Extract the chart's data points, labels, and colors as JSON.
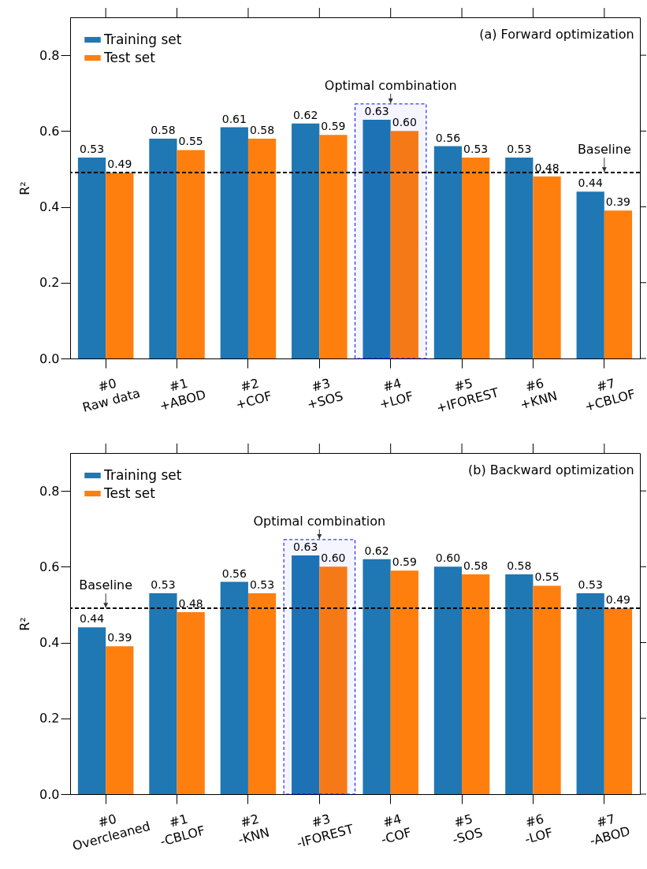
{
  "chart_data": [
    {
      "type": "bar",
      "title": "(a) Forward optimization",
      "ylabel": "R²",
      "categories": [
        "#0\nRaw data",
        "#1\n+ABOD",
        "#2\n+COF",
        "#3\n+SOS",
        "#4\n+LOF",
        "#5\n+IFOREST",
        "#6\n+KNN",
        "#7\n+CBLOF"
      ],
      "series": [
        {
          "name": "Training set",
          "color": "#1f77b4",
          "values": [
            0.53,
            0.58,
            0.61,
            0.62,
            0.63,
            0.56,
            0.53,
            0.44
          ],
          "value_labels": [
            "0.53",
            "0.58",
            "0.61",
            "0.62",
            "0.63",
            "0.56",
            "0.53",
            "0.44"
          ]
        },
        {
          "name": "Test set",
          "color": "#ff7f0e",
          "values": [
            0.49,
            0.55,
            0.58,
            0.59,
            0.6,
            0.53,
            0.48,
            0.39
          ],
          "value_labels": [
            "0.49",
            "0.55",
            "0.58",
            "0.59",
            "0.60",
            "0.53",
            "0.48",
            "0.39"
          ]
        }
      ],
      "ylim": [
        0,
        0.9
      ],
      "yticks": [
        {
          "value": 0,
          "label": "0.0"
        },
        0.2,
        0.4,
        0.6,
        0.8
      ],
      "legend": "top left",
      "ref_lines": [
        {
          "axis": "y",
          "value": 0.49,
          "color": "#000000",
          "line_style": "dashed"
        }
      ],
      "bands": [
        {
          "axis": "x",
          "from": "#4\n+LOF",
          "to": "#4\n+LOF",
          "label": "Optimal combination",
          "color": "#0000ff"
        }
      ],
      "annotations": [
        {
          "text": "Baseline",
          "x": "#7\n+CBLOF",
          "y": 0.49
        }
      ]
    },
    {
      "type": "bar",
      "title": "(b) Backward optimization",
      "ylabel": "R²",
      "categories": [
        "#0\nOvercleaned",
        "#1\n-CBLOF",
        "#2\n-KNN",
        "#3\n-IFOREST",
        "#4\n-COF",
        "#5\n-SOS",
        "#6\n-LOF",
        "#7\n-ABOD"
      ],
      "series": [
        {
          "name": "Training set",
          "color": "#1f77b4",
          "values": [
            0.44,
            0.53,
            0.56,
            0.63,
            0.62,
            0.6,
            0.58,
            0.53
          ],
          "value_labels": [
            "0.44",
            "0.53",
            "0.56",
            "0.63",
            "0.62",
            "0.60",
            "0.58",
            "0.53"
          ]
        },
        {
          "name": "Test set",
          "color": "#ff7f0e",
          "values": [
            0.39,
            0.48,
            0.53,
            0.6,
            0.59,
            0.58,
            0.55,
            0.49
          ],
          "value_labels": [
            "0.39",
            "0.48",
            "0.53",
            "0.60",
            "0.59",
            "0.58",
            "0.55",
            "0.49"
          ]
        }
      ],
      "ylim": [
        0,
        0.9
      ],
      "yticks": [
        {
          "value": 0,
          "label": "0.0"
        },
        0.2,
        0.4,
        0.6,
        0.8
      ],
      "legend": "top left",
      "ref_lines": [
        {
          "axis": "y",
          "value": 0.49,
          "color": "#000000",
          "line_style": "dashed"
        }
      ],
      "bands": [
        {
          "axis": "x",
          "from": "#3\n-IFOREST",
          "to": "#3\n-IFOREST",
          "label": "Optimal combination",
          "color": "#0000ff"
        }
      ],
      "annotations": [
        {
          "text": "Baseline",
          "x": "#0\nOvercleaned",
          "y": 0.49
        }
      ]
    }
  ]
}
